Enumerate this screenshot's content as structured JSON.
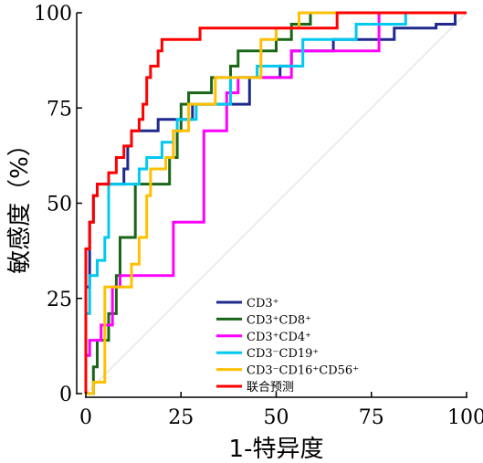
{
  "chart_data": {
    "type": "line",
    "xlabel": "1-特异度",
    "ylabel": "敏感度（%）",
    "xlim": [
      0,
      100
    ],
    "ylim": [
      0,
      100
    ],
    "xticks": [
      "0",
      "25",
      "50",
      "75",
      "100"
    ],
    "yticks": [
      "0",
      "25",
      "50",
      "75",
      "100"
    ],
    "reference_line": true,
    "legend_position": "bottom-center",
    "series": [
      {
        "name": "CD3⁺",
        "color": "#1f2a8c",
        "points": [
          [
            0,
            0
          ],
          [
            0,
            28
          ],
          [
            1,
            28
          ],
          [
            1,
            38
          ],
          [
            1,
            38
          ],
          [
            1,
            45
          ],
          [
            2,
            45
          ],
          [
            2,
            52
          ],
          [
            3,
            52
          ],
          [
            3,
            55
          ],
          [
            10,
            55
          ],
          [
            10,
            59
          ],
          [
            11,
            59
          ],
          [
            11,
            65
          ],
          [
            12,
            65
          ],
          [
            12,
            69
          ],
          [
            19,
            69
          ],
          [
            19,
            72
          ],
          [
            28,
            72
          ],
          [
            28,
            76
          ],
          [
            43,
            76
          ],
          [
            43,
            83
          ],
          [
            51,
            83
          ],
          [
            51,
            86
          ],
          [
            54,
            86
          ],
          [
            54,
            90
          ],
          [
            65,
            90
          ],
          [
            65,
            93
          ],
          [
            81,
            93
          ],
          [
            81,
            96
          ],
          [
            92,
            96
          ],
          [
            92,
            97
          ],
          [
            97,
            97
          ],
          [
            97,
            100
          ],
          [
            100,
            100
          ]
        ]
      },
      {
        "name": "CD3⁺CD8⁺",
        "color": "#1a6618",
        "points": [
          [
            0,
            0
          ],
          [
            2,
            0
          ],
          [
            2,
            7
          ],
          [
            3,
            7
          ],
          [
            3,
            14
          ],
          [
            6,
            14
          ],
          [
            6,
            21
          ],
          [
            8,
            21
          ],
          [
            8,
            31
          ],
          [
            9,
            31
          ],
          [
            9,
            41
          ],
          [
            13,
            41
          ],
          [
            13,
            55
          ],
          [
            22,
            55
          ],
          [
            22,
            62
          ],
          [
            24,
            62
          ],
          [
            24,
            69
          ],
          [
            25,
            69
          ],
          [
            25,
            76
          ],
          [
            27,
            76
          ],
          [
            27,
            79
          ],
          [
            33,
            79
          ],
          [
            33,
            83
          ],
          [
            38,
            83
          ],
          [
            38,
            86
          ],
          [
            40,
            86
          ],
          [
            40,
            90
          ],
          [
            50,
            90
          ],
          [
            50,
            93
          ],
          [
            54,
            93
          ],
          [
            54,
            97
          ],
          [
            59,
            97
          ],
          [
            59,
            100
          ],
          [
            65,
            100
          ],
          [
            100,
            100
          ]
        ]
      },
      {
        "name": "CD3⁺CD4⁺",
        "color": "#ff00ff",
        "points": [
          [
            0,
            0
          ],
          [
            0,
            10
          ],
          [
            1,
            10
          ],
          [
            1,
            14
          ],
          [
            4,
            14
          ],
          [
            4,
            18
          ],
          [
            7,
            18
          ],
          [
            7,
            28
          ],
          [
            9,
            28
          ],
          [
            9,
            31
          ],
          [
            23,
            31
          ],
          [
            23,
            45
          ],
          [
            31,
            45
          ],
          [
            31,
            69
          ],
          [
            37,
            69
          ],
          [
            37,
            79
          ],
          [
            40,
            79
          ],
          [
            40,
            83
          ],
          [
            54,
            83
          ],
          [
            54,
            90
          ],
          [
            77,
            90
          ],
          [
            77,
            100
          ],
          [
            100,
            100
          ]
        ]
      },
      {
        "name": "CD3⁻CD19⁺",
        "color": "#00c8f0",
        "points": [
          [
            0,
            0
          ],
          [
            0,
            21
          ],
          [
            1,
            21
          ],
          [
            1,
            31
          ],
          [
            3,
            31
          ],
          [
            3,
            35
          ],
          [
            5,
            35
          ],
          [
            5,
            41
          ],
          [
            6,
            41
          ],
          [
            6,
            55
          ],
          [
            14,
            55
          ],
          [
            14,
            59
          ],
          [
            16,
            59
          ],
          [
            16,
            62
          ],
          [
            20,
            62
          ],
          [
            20,
            66
          ],
          [
            23,
            66
          ],
          [
            23,
            69
          ],
          [
            24,
            69
          ],
          [
            24,
            72
          ],
          [
            29,
            72
          ],
          [
            29,
            76
          ],
          [
            38,
            76
          ],
          [
            38,
            83
          ],
          [
            45,
            83
          ],
          [
            45,
            86
          ],
          [
            57,
            86
          ],
          [
            57,
            93
          ],
          [
            71,
            93
          ],
          [
            71,
            97
          ],
          [
            84,
            97
          ],
          [
            84,
            100
          ],
          [
            100,
            100
          ]
        ]
      },
      {
        "name": "CD3⁻CD16⁺CD56⁺",
        "color": "#ffc000",
        "points": [
          [
            0,
            0
          ],
          [
            2,
            0
          ],
          [
            2,
            3
          ],
          [
            5,
            3
          ],
          [
            5,
            28
          ],
          [
            12,
            28
          ],
          [
            12,
            34
          ],
          [
            14,
            34
          ],
          [
            14,
            41
          ],
          [
            16,
            41
          ],
          [
            16,
            52
          ],
          [
            17,
            52
          ],
          [
            17,
            59
          ],
          [
            21,
            59
          ],
          [
            21,
            62
          ],
          [
            23,
            62
          ],
          [
            23,
            69
          ],
          [
            27,
            69
          ],
          [
            27,
            76
          ],
          [
            34,
            76
          ],
          [
            34,
            83
          ],
          [
            46,
            83
          ],
          [
            46,
            93
          ],
          [
            50,
            93
          ],
          [
            50,
            96
          ],
          [
            56,
            96
          ],
          [
            56,
            100
          ],
          [
            100,
            100
          ]
        ]
      },
      {
        "name": "联合预测",
        "color": "#ff0000",
        "points": [
          [
            0,
            0
          ],
          [
            0,
            38
          ],
          [
            1,
            38
          ],
          [
            1,
            45
          ],
          [
            2,
            45
          ],
          [
            2,
            52
          ],
          [
            3,
            52
          ],
          [
            3,
            55
          ],
          [
            6,
            55
          ],
          [
            6,
            58
          ],
          [
            8,
            58
          ],
          [
            8,
            62
          ],
          [
            10,
            62
          ],
          [
            10,
            65
          ],
          [
            12,
            65
          ],
          [
            12,
            69
          ],
          [
            14,
            69
          ],
          [
            14,
            72
          ],
          [
            15,
            72
          ],
          [
            15,
            76
          ],
          [
            16,
            76
          ],
          [
            16,
            83
          ],
          [
            17,
            83
          ],
          [
            17,
            86
          ],
          [
            19,
            86
          ],
          [
            19,
            90
          ],
          [
            20,
            90
          ],
          [
            20,
            93
          ],
          [
            30,
            93
          ],
          [
            30,
            96
          ],
          [
            66,
            96
          ],
          [
            66,
            100
          ],
          [
            100,
            100
          ]
        ]
      }
    ]
  }
}
